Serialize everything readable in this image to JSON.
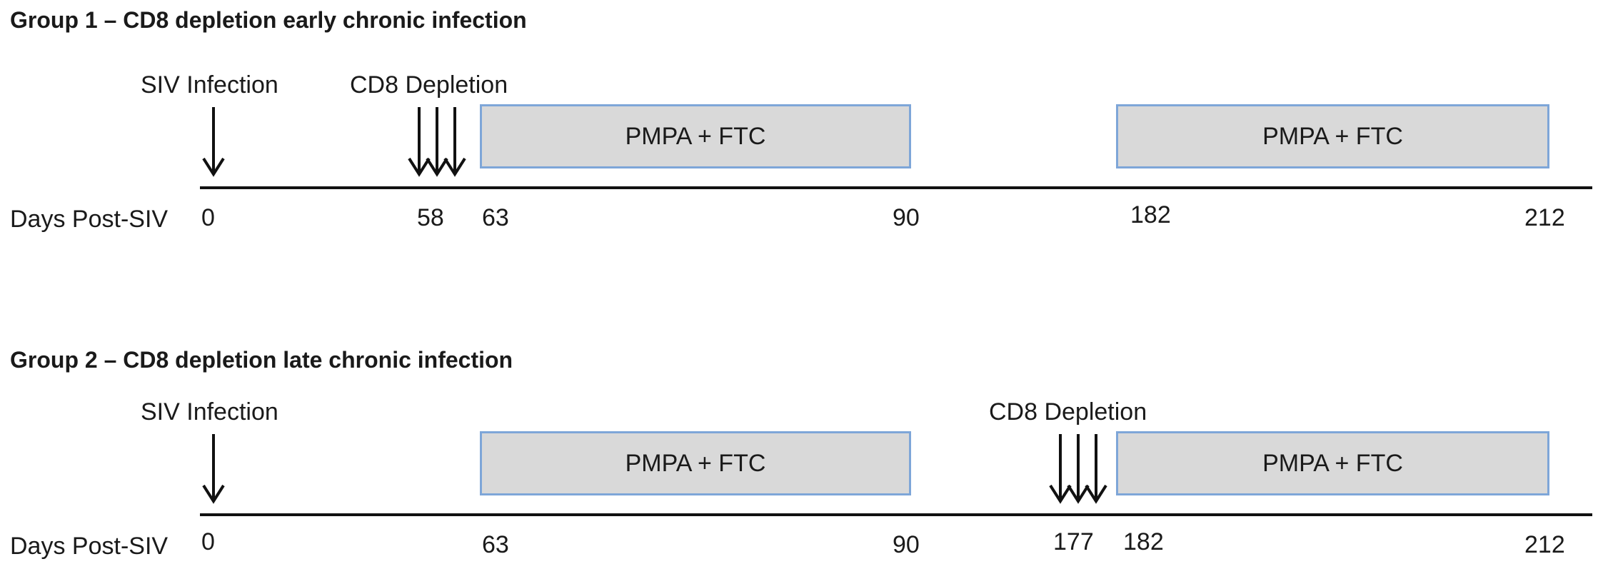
{
  "arrow_color": "#111111",
  "bar_fill": "#d9d9d9",
  "bar_border": "#7ea6d8",
  "groups": [
    {
      "title": "Group 1 – CD8 depletion early chronic infection",
      "infection_label": "SIV Infection",
      "depletion_label": "CD8 Depletion",
      "bars": [
        {
          "label": "PMPA + FTC",
          "start_day": 63,
          "end_day": 90
        },
        {
          "label": "PMPA + FTC",
          "start_day": 182,
          "end_day": 212
        }
      ],
      "row_label": "Days Post-SIV",
      "ticks": [
        "0",
        "58",
        "63",
        "90",
        "182",
        "212"
      ]
    },
    {
      "title": "Group 2 – CD8 depletion late chronic infection",
      "infection_label": "SIV Infection",
      "depletion_label": "CD8 Depletion",
      "bars": [
        {
          "label": "PMPA + FTC",
          "start_day": 63,
          "end_day": 90
        },
        {
          "label": "PMPA + FTC",
          "start_day": 182,
          "end_day": 212
        }
      ],
      "row_label": "Days Post-SIV",
      "ticks": [
        "0",
        "63",
        "90",
        "177",
        "182",
        "212"
      ]
    }
  ]
}
